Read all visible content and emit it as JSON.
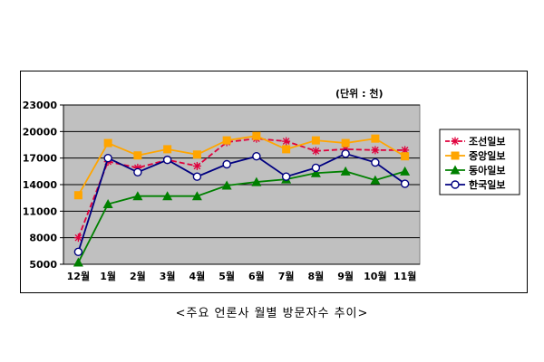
{
  "unit_note": "(단위 : 천)",
  "caption": "<주요 언론사 월별 방문자수 추이>",
  "colors": {
    "plot_bg": "#c0c0c0",
    "grid": "#000000"
  },
  "chart_data": {
    "type": "line",
    "categories": [
      "12월",
      "1월",
      "2월",
      "3월",
      "4월",
      "5월",
      "6월",
      "7월",
      "8월",
      "9월",
      "10월",
      "11월"
    ],
    "ylim": [
      5000,
      23000
    ],
    "yticks": [
      5000,
      8000,
      11000,
      14000,
      17000,
      20000,
      23000
    ],
    "ytick_labels": [
      "5000",
      "8000",
      "11000",
      "14000",
      "17000",
      "20000",
      "23000"
    ],
    "grid": true,
    "legend_position": "right",
    "series": [
      {
        "name": "조선일보",
        "color": "#e0003c",
        "marker": "asterisk",
        "dashed": true,
        "values": [
          8000,
          16600,
          15900,
          16800,
          16100,
          18800,
          19200,
          18900,
          17800,
          18000,
          17900,
          17900
        ]
      },
      {
        "name": "중앙일보",
        "color": "#ffa500",
        "marker": "square",
        "dashed": false,
        "values": [
          12800,
          18700,
          17300,
          18000,
          17400,
          19000,
          19500,
          18000,
          19000,
          18700,
          19200,
          17200
        ]
      },
      {
        "name": "동아일보",
        "color": "#008000",
        "marker": "triangle",
        "dashed": false,
        "values": [
          5200,
          11800,
          12700,
          12700,
          12700,
          13900,
          14300,
          14600,
          15300,
          15500,
          14500,
          15500
        ]
      },
      {
        "name": "한국일보",
        "color": "#000080",
        "marker": "circle",
        "dashed": false,
        "values": [
          6400,
          17000,
          15400,
          16800,
          14900,
          16300,
          17200,
          14900,
          15900,
          17500,
          16500,
          14100
        ]
      }
    ]
  }
}
